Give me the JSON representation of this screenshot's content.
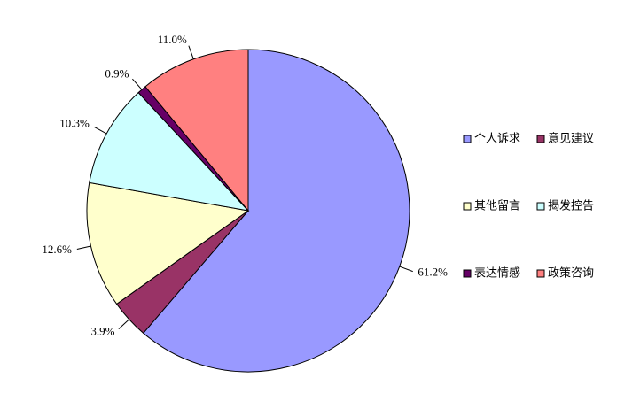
{
  "chart_data": {
    "type": "pie",
    "categories": [
      "个人诉求",
      "意见建议",
      "其他留言",
      "揭发控告",
      "表达情感",
      "政策咨询"
    ],
    "values": [
      61.2,
      3.9,
      12.6,
      10.3,
      0.9,
      11.0
    ],
    "value_labels": [
      "61.2%",
      "3.9%",
      "12.6%",
      "10.3%",
      "0.9%",
      "11.0%"
    ],
    "colors": [
      "#9999ff",
      "#993366",
      "#ffffcc",
      "#ccffff",
      "#660066",
      "#ff8080"
    ],
    "legend": "right"
  }
}
